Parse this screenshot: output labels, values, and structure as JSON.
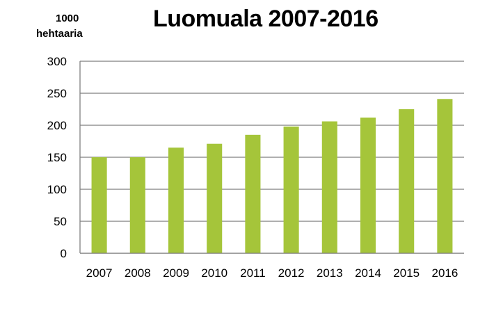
{
  "chart_data": {
    "type": "bar",
    "title": "Luomuala 2007-2016",
    "ylabel": "1000 hehtaaria",
    "ylabel_lines": [
      "1000",
      "hehtaaria"
    ],
    "xlabel": "",
    "categories": [
      "2007",
      "2008",
      "2009",
      "2010",
      "2011",
      "2012",
      "2013",
      "2014",
      "2015",
      "2016"
    ],
    "values": [
      150,
      150,
      165,
      171,
      185,
      198,
      206,
      212,
      225,
      241
    ],
    "ylim": [
      0,
      300
    ],
    "yticks": [
      0,
      50,
      100,
      150,
      200,
      250,
      300
    ],
    "grid": true,
    "legend": "none",
    "bar_color": "#a5c53a",
    "grid_color": "#7f7f7f"
  }
}
